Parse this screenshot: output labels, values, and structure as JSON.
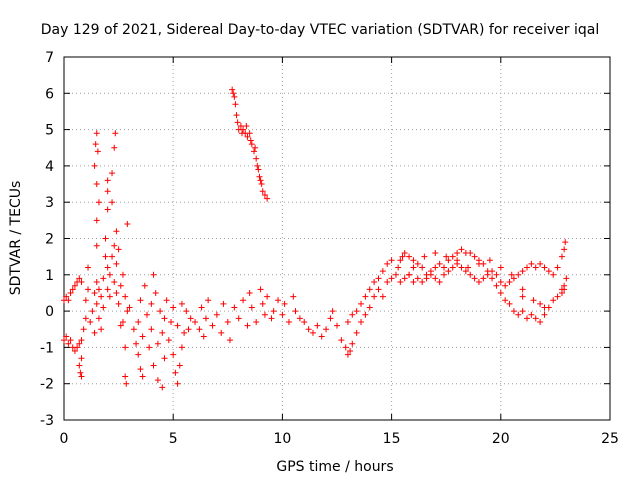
{
  "chart_data": {
    "type": "scatter",
    "title": "Day 129 of 2021, Sidereal Day-to-day VTEC variation (SDTVAR) for receiver iqal",
    "xlabel": "GPS time / hours",
    "ylabel": "SDTVAR / TECUs",
    "xlim": [
      0,
      25
    ],
    "ylim": [
      -3,
      7
    ],
    "xticks": [
      0,
      5,
      10,
      15,
      20,
      25
    ],
    "yticks": [
      -3,
      -2,
      -1,
      0,
      1,
      2,
      3,
      4,
      5,
      6,
      7
    ],
    "grid": true,
    "marker": "+",
    "series": [
      {
        "name": "SDTVAR",
        "color": "#ff0000",
        "points": [
          [
            0.0,
            0.3
          ],
          [
            0.1,
            0.4
          ],
          [
            0.2,
            0.3
          ],
          [
            0.3,
            0.5
          ],
          [
            0.4,
            0.6
          ],
          [
            0.5,
            0.7
          ],
          [
            0.6,
            0.8
          ],
          [
            0.7,
            0.9
          ],
          [
            0.8,
            0.8
          ],
          [
            0.0,
            -0.8
          ],
          [
            0.1,
            -0.7
          ],
          [
            0.2,
            -0.9
          ],
          [
            0.3,
            -0.8
          ],
          [
            0.4,
            -1.0
          ],
          [
            0.5,
            -1.1
          ],
          [
            0.6,
            -1.0
          ],
          [
            0.7,
            -0.9
          ],
          [
            0.8,
            -0.8
          ],
          [
            0.7,
            -1.5
          ],
          [
            0.75,
            -1.7
          ],
          [
            0.8,
            -1.8
          ],
          [
            0.8,
            -1.3
          ],
          [
            0.9,
            -0.5
          ],
          [
            1.0,
            -0.2
          ],
          [
            1.0,
            0.3
          ],
          [
            1.1,
            0.6
          ],
          [
            1.1,
            1.2
          ],
          [
            1.2,
            -0.3
          ],
          [
            1.3,
            0.0
          ],
          [
            1.4,
            0.5
          ],
          [
            1.4,
            -0.6
          ],
          [
            1.5,
            0.2
          ],
          [
            1.5,
            0.8
          ],
          [
            1.5,
            1.8
          ],
          [
            1.5,
            2.5
          ],
          [
            1.5,
            3.5
          ],
          [
            1.4,
            4.0
          ],
          [
            1.45,
            4.6
          ],
          [
            1.5,
            4.9
          ],
          [
            1.55,
            4.4
          ],
          [
            1.6,
            -0.2
          ],
          [
            1.6,
            0.6
          ],
          [
            1.6,
            3.0
          ],
          [
            1.7,
            -0.5
          ],
          [
            1.7,
            0.4
          ],
          [
            1.8,
            0.1
          ],
          [
            1.8,
            0.9
          ],
          [
            1.9,
            1.5
          ],
          [
            1.9,
            2.0
          ],
          [
            2.0,
            0.6
          ],
          [
            2.0,
            1.2
          ],
          [
            2.0,
            2.8
          ],
          [
            2.0,
            3.3
          ],
          [
            2.0,
            3.6
          ],
          [
            2.1,
            0.4
          ],
          [
            2.1,
            1.0
          ],
          [
            2.2,
            1.5
          ],
          [
            2.2,
            3.0
          ],
          [
            2.2,
            3.8
          ],
          [
            2.3,
            0.8
          ],
          [
            2.3,
            1.8
          ],
          [
            2.3,
            4.5
          ],
          [
            2.35,
            4.9
          ],
          [
            2.4,
            0.5
          ],
          [
            2.4,
            1.3
          ],
          [
            2.4,
            2.2
          ],
          [
            2.5,
            1.7
          ],
          [
            2.5,
            0.2
          ],
          [
            2.6,
            -0.4
          ],
          [
            2.6,
            0.7
          ],
          [
            2.7,
            1.0
          ],
          [
            2.7,
            -0.3
          ],
          [
            2.8,
            0.4
          ],
          [
            2.8,
            -1.0
          ],
          [
            2.8,
            -1.8
          ],
          [
            2.85,
            -2.0
          ],
          [
            2.9,
            0.0
          ],
          [
            2.9,
            2.4
          ],
          [
            3.0,
            0.1
          ],
          [
            3.2,
            -0.5
          ],
          [
            3.3,
            -0.9
          ],
          [
            3.4,
            -0.3
          ],
          [
            3.4,
            -1.2
          ],
          [
            3.5,
            0.3
          ],
          [
            3.5,
            -1.6
          ],
          [
            3.6,
            -0.7
          ],
          [
            3.6,
            -1.8
          ],
          [
            3.7,
            0.7
          ],
          [
            3.8,
            -0.1
          ],
          [
            3.9,
            -1.0
          ],
          [
            4.0,
            0.2
          ],
          [
            4.0,
            -0.5
          ],
          [
            4.1,
            1.0
          ],
          [
            4.1,
            -1.5
          ],
          [
            4.2,
            0.5
          ],
          [
            4.3,
            -0.9
          ],
          [
            4.3,
            -1.9
          ],
          [
            4.4,
            0.0
          ],
          [
            4.5,
            -0.6
          ],
          [
            4.5,
            -2.1
          ],
          [
            4.6,
            -0.2
          ],
          [
            4.6,
            -1.3
          ],
          [
            4.7,
            0.3
          ],
          [
            4.8,
            -0.8
          ],
          [
            4.9,
            -0.3
          ],
          [
            5.0,
            0.1
          ],
          [
            5.0,
            -1.2
          ],
          [
            5.1,
            -1.7
          ],
          [
            5.2,
            -0.4
          ],
          [
            5.2,
            -2.0
          ],
          [
            5.3,
            -1.5
          ],
          [
            5.4,
            0.2
          ],
          [
            5.4,
            -1.0
          ],
          [
            5.5,
            -0.6
          ],
          [
            5.6,
            0.0
          ],
          [
            5.7,
            -0.5
          ],
          [
            5.8,
            -0.2
          ],
          [
            6.0,
            -0.3
          ],
          [
            6.2,
            -0.5
          ],
          [
            6.3,
            0.1
          ],
          [
            6.4,
            -0.7
          ],
          [
            6.5,
            -0.2
          ],
          [
            6.6,
            0.3
          ],
          [
            6.8,
            -0.4
          ],
          [
            7.0,
            -0.1
          ],
          [
            7.2,
            -0.6
          ],
          [
            7.3,
            0.2
          ],
          [
            7.5,
            -0.3
          ],
          [
            7.6,
            -0.8
          ],
          [
            7.8,
            0.1
          ],
          [
            8.0,
            -0.2
          ],
          [
            8.2,
            0.3
          ],
          [
            8.4,
            -0.4
          ],
          [
            8.5,
            0.5
          ],
          [
            8.6,
            0.1
          ],
          [
            8.8,
            -0.3
          ],
          [
            9.0,
            0.6
          ],
          [
            9.1,
            0.2
          ],
          [
            9.2,
            -0.1
          ],
          [
            9.3,
            0.4
          ],
          [
            9.5,
            -0.2
          ],
          [
            9.6,
            0.0
          ],
          [
            9.8,
            0.3
          ],
          [
            10.0,
            -0.1
          ],
          [
            10.1,
            0.2
          ],
          [
            10.3,
            -0.3
          ],
          [
            10.5,
            0.4
          ],
          [
            10.6,
            0.0
          ],
          [
            10.8,
            -0.2
          ],
          [
            11.0,
            -0.3
          ],
          [
            11.2,
            -0.5
          ],
          [
            11.4,
            -0.6
          ],
          [
            11.6,
            -0.4
          ],
          [
            11.8,
            -0.7
          ],
          [
            12.0,
            -0.5
          ],
          [
            12.2,
            -0.2
          ],
          [
            12.3,
            0.0
          ],
          [
            12.5,
            -0.4
          ],
          [
            12.7,
            -0.8
          ],
          [
            12.9,
            -1.0
          ],
          [
            13.0,
            -1.2
          ],
          [
            13.1,
            -1.1
          ],
          [
            13.2,
            -0.9
          ],
          [
            13.4,
            -0.6
          ],
          [
            13.6,
            -0.3
          ],
          [
            13.8,
            -0.1
          ],
          [
            14.0,
            0.1
          ],
          [
            14.2,
            0.4
          ],
          [
            14.4,
            0.6
          ],
          [
            14.6,
            0.4
          ],
          [
            14.8,
            0.8
          ],
          [
            15.0,
            0.9
          ],
          [
            15.2,
            1.0
          ],
          [
            15.3,
            1.2
          ],
          [
            15.4,
            1.4
          ],
          [
            15.5,
            1.5
          ],
          [
            15.6,
            1.6
          ],
          [
            15.8,
            1.5
          ],
          [
            16.0,
            1.4
          ],
          [
            16.2,
            1.3
          ],
          [
            16.4,
            1.2
          ],
          [
            16.6,
            1.0
          ],
          [
            16.8,
            1.1
          ],
          [
            17.0,
            1.2
          ],
          [
            17.2,
            1.3
          ],
          [
            17.4,
            1.2
          ],
          [
            17.6,
            1.4
          ],
          [
            17.8,
            1.5
          ],
          [
            18.0,
            1.6
          ],
          [
            18.2,
            1.7
          ],
          [
            18.4,
            1.6
          ],
          [
            18.6,
            1.6
          ],
          [
            18.8,
            1.5
          ],
          [
            19.0,
            1.4
          ],
          [
            19.2,
            1.3
          ],
          [
            19.4,
            1.1
          ],
          [
            19.6,
            0.9
          ],
          [
            19.8,
            0.7
          ],
          [
            20.0,
            0.5
          ],
          [
            20.2,
            0.3
          ],
          [
            20.4,
            0.2
          ],
          [
            20.6,
            0.0
          ],
          [
            20.8,
            -0.1
          ],
          [
            21.0,
            0.0
          ],
          [
            21.2,
            -0.2
          ],
          [
            21.4,
            -0.1
          ],
          [
            21.6,
            -0.2
          ],
          [
            21.8,
            -0.3
          ],
          [
            22.0,
            -0.1
          ],
          [
            22.2,
            0.1
          ],
          [
            22.4,
            0.3
          ],
          [
            22.6,
            0.4
          ],
          [
            22.8,
            0.6
          ],
          [
            22.9,
            0.7
          ],
          [
            23.0,
            0.9
          ],
          [
            13.0,
            -0.3
          ],
          [
            13.2,
            -0.1
          ],
          [
            13.4,
            0.0
          ],
          [
            13.6,
            0.2
          ],
          [
            13.8,
            0.4
          ],
          [
            14.0,
            0.6
          ],
          [
            14.2,
            0.8
          ],
          [
            14.4,
            0.9
          ],
          [
            14.6,
            1.1
          ],
          [
            14.8,
            1.3
          ],
          [
            15.0,
            1.4
          ],
          [
            15.4,
            0.8
          ],
          [
            15.6,
            0.9
          ],
          [
            15.8,
            1.0
          ],
          [
            16.0,
            0.8
          ],
          [
            16.2,
            0.9
          ],
          [
            16.4,
            0.8
          ],
          [
            16.6,
            0.9
          ],
          [
            16.8,
            1.0
          ],
          [
            17.0,
            0.9
          ],
          [
            17.2,
            0.8
          ],
          [
            17.4,
            1.0
          ],
          [
            17.6,
            1.1
          ],
          [
            17.8,
            1.2
          ],
          [
            18.0,
            1.3
          ],
          [
            18.2,
            1.2
          ],
          [
            18.4,
            1.1
          ],
          [
            18.6,
            1.0
          ],
          [
            18.8,
            0.9
          ],
          [
            19.0,
            0.8
          ],
          [
            19.2,
            0.9
          ],
          [
            19.4,
            1.0
          ],
          [
            19.6,
            1.1
          ],
          [
            19.8,
            1.0
          ],
          [
            20.0,
            0.8
          ],
          [
            20.2,
            0.7
          ],
          [
            20.4,
            0.8
          ],
          [
            20.6,
            0.9
          ],
          [
            20.8,
            1.0
          ],
          [
            21.0,
            1.1
          ],
          [
            21.2,
            1.2
          ],
          [
            21.4,
            1.3
          ],
          [
            21.6,
            1.2
          ],
          [
            21.8,
            1.3
          ],
          [
            22.0,
            1.2
          ],
          [
            22.2,
            1.1
          ],
          [
            22.4,
            1.0
          ],
          [
            22.6,
            1.2
          ],
          [
            22.8,
            1.5
          ],
          [
            22.9,
            1.7
          ],
          [
            22.95,
            1.9
          ],
          [
            22.9,
            0.6
          ],
          [
            22.8,
            0.5
          ],
          [
            15.8,
            1.0
          ],
          [
            16.0,
            1.2
          ],
          [
            16.5,
            1.5
          ],
          [
            17.0,
            1.6
          ],
          [
            17.5,
            1.5
          ],
          [
            18.0,
            1.4
          ],
          [
            18.5,
            1.2
          ],
          [
            19.0,
            1.3
          ],
          [
            19.5,
            1.4
          ],
          [
            20.0,
            1.2
          ],
          [
            20.5,
            1.0
          ],
          [
            21.0,
            0.6
          ],
          [
            21.5,
            0.3
          ],
          [
            21.0,
            0.4
          ],
          [
            21.8,
            0.2
          ],
          [
            22.0,
            0.1
          ],
          [
            7.7,
            6.1
          ],
          [
            7.75,
            6.0
          ],
          [
            7.8,
            5.9
          ],
          [
            7.85,
            5.7
          ],
          [
            7.9,
            5.4
          ],
          [
            7.95,
            5.2
          ],
          [
            8.0,
            5.0
          ],
          [
            8.1,
            5.1
          ],
          [
            8.15,
            4.9
          ],
          [
            8.2,
            5.0
          ],
          [
            8.3,
            4.9
          ],
          [
            8.35,
            5.1
          ],
          [
            8.4,
            4.8
          ],
          [
            8.5,
            4.9
          ],
          [
            8.55,
            4.7
          ],
          [
            8.6,
            4.6
          ],
          [
            8.7,
            4.4
          ],
          [
            8.75,
            4.5
          ],
          [
            8.8,
            4.2
          ],
          [
            8.85,
            4.0
          ],
          [
            8.9,
            3.9
          ],
          [
            8.95,
            3.7
          ],
          [
            9.0,
            3.6
          ],
          [
            9.05,
            3.5
          ],
          [
            9.1,
            3.3
          ],
          [
            9.2,
            3.2
          ],
          [
            9.3,
            3.1
          ]
        ]
      }
    ]
  }
}
